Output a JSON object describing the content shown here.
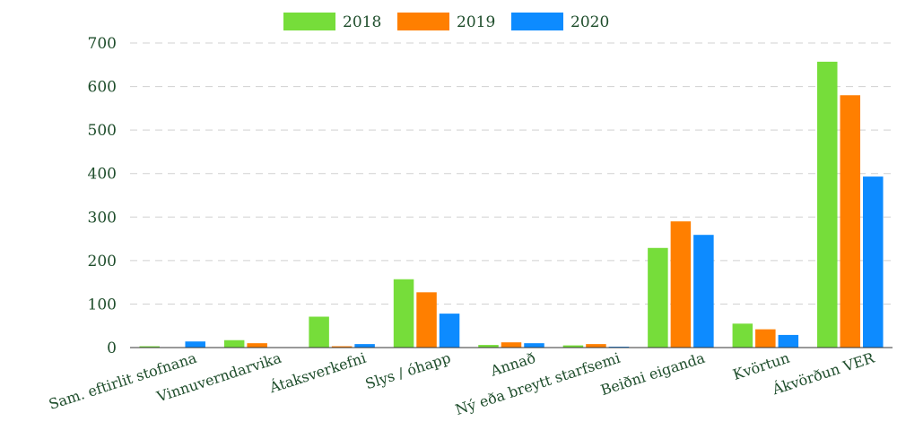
{
  "chart_data": {
    "type": "bar",
    "title": "",
    "xlabel": "",
    "ylabel": "",
    "categories": [
      "Sam. eftirlit stofnana",
      "Vinnuverndarvika",
      "Átaksverkefni",
      "Slys / óhapp",
      "Annað",
      "Ný eða breytt starfsemi",
      "Beiðni eiganda",
      "Kvörtun",
      "Ákvörðun VER"
    ],
    "series": [
      {
        "name": "2018",
        "color": "#76dd3a",
        "values": [
          3,
          17,
          71,
          157,
          6,
          5,
          229,
          55,
          657
        ]
      },
      {
        "name": "2019",
        "color": "#ff7f00",
        "values": [
          1,
          10,
          3,
          127,
          12,
          8,
          290,
          42,
          580
        ]
      },
      {
        "name": "2020",
        "color": "#0d8bff",
        "values": [
          14,
          0,
          8,
          78,
          10,
          2,
          259,
          29,
          393
        ]
      }
    ],
    "ylim": [
      0,
      700
    ],
    "yticks": [
      0,
      100,
      200,
      300,
      400,
      500,
      600,
      700
    ],
    "grid": true,
    "legend_position": "top-center"
  }
}
